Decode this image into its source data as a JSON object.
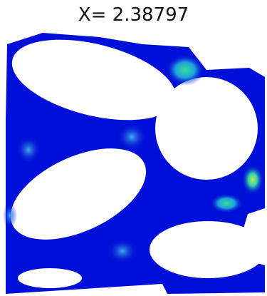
{
  "title": "X= 2.38797"
}
